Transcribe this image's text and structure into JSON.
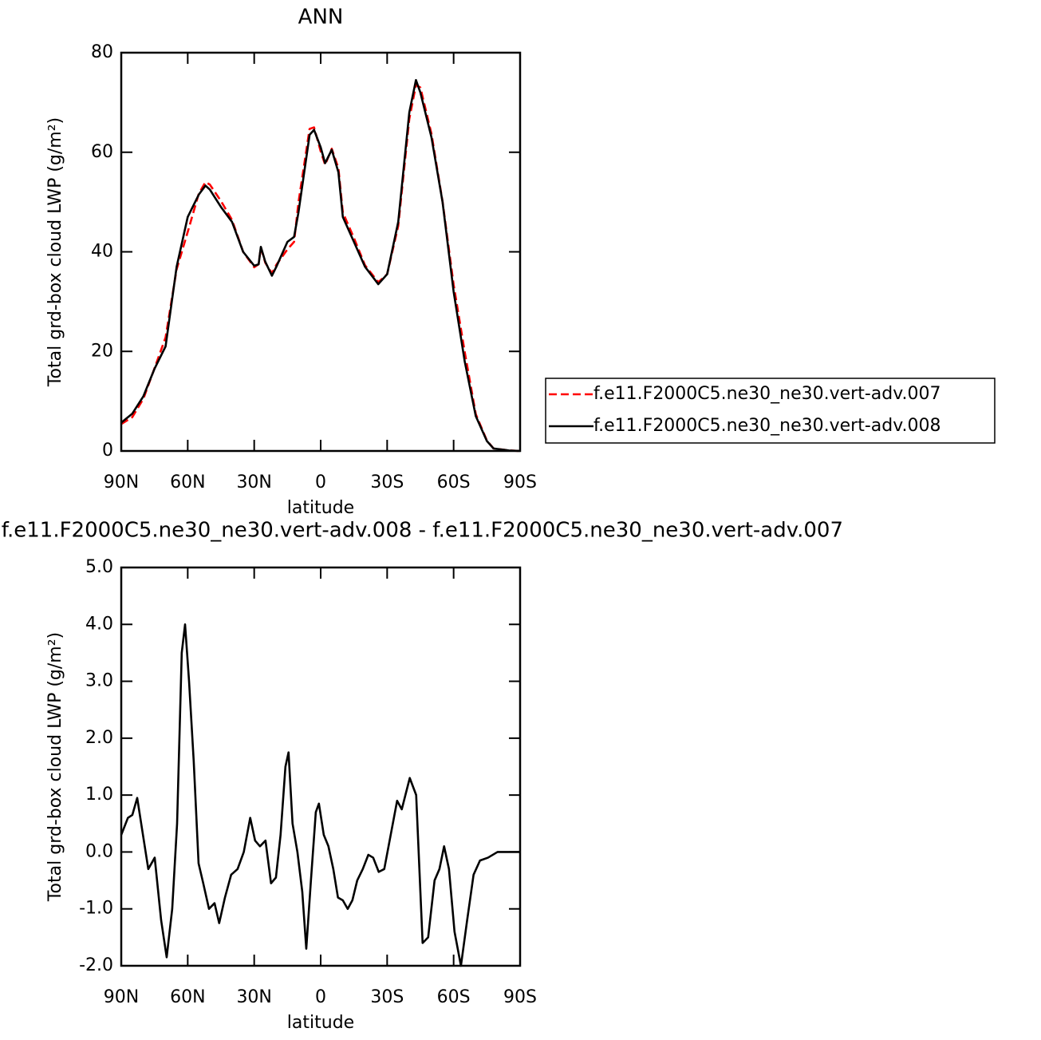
{
  "chart_data": [
    {
      "type": "line",
      "title": "ANN",
      "xlabel": "latitude",
      "ylabel": "Total grd-box cloud LWP (g/m²)",
      "xlim": [
        90,
        -90
      ],
      "xticks": [
        {
          "value": 90,
          "label": "90N"
        },
        {
          "value": 60,
          "label": "60N"
        },
        {
          "value": 30,
          "label": "30N"
        },
        0,
        {
          "value": -30,
          "label": "30S"
        },
        {
          "value": -60,
          "label": "60S"
        },
        {
          "value": -90,
          "label": "90S"
        }
      ],
      "ylim": [
        0,
        80
      ],
      "yticks": [
        0,
        20,
        40,
        60,
        80
      ],
      "legend": "right",
      "x": [
        90,
        85,
        80,
        75,
        70,
        65,
        60,
        55,
        52,
        50,
        45,
        40,
        35,
        30,
        28,
        27,
        25,
        22,
        20,
        15,
        12,
        10,
        5,
        3,
        0,
        -2,
        -5,
        -8,
        -10,
        -15,
        -20,
        -26,
        -30,
        -35,
        -40,
        -43,
        -45,
        -50,
        -55,
        -60,
        -65,
        -70,
        -75,
        -78,
        -85,
        -90
      ],
      "series": [
        {
          "name": "f.e11.F2000C5.ne30_ne30.vert-adv.007",
          "color": "#ff0000",
          "linestyle": "dashed",
          "values": [
            5.4,
            6.8,
            10.5,
            16.6,
            22.8,
            36.5,
            44,
            51.7,
            54,
            53.5,
            50.2,
            46.4,
            40,
            36.9,
            37.5,
            40.9,
            37.8,
            35.7,
            37.4,
            40.5,
            42,
            50,
            64.7,
            65,
            60.2,
            57.5,
            60.7,
            56.8,
            47.9,
            42.8,
            37.3,
            33.9,
            35.5,
            45.2,
            66.7,
            73.5,
            73,
            63.7,
            50.1,
            33.4,
            19.9,
            7.4,
            2.1,
            0.5,
            0.1,
            0
          ]
        },
        {
          "name": "f.e11.F2000C5.ne30_ne30.vert-adv.008",
          "color": "#000000",
          "linestyle": "solid",
          "values": [
            5.7,
            7.5,
            11,
            16.5,
            21,
            37,
            47,
            51.5,
            53.3,
            52.5,
            49,
            46,
            40,
            37.2,
            37.5,
            41,
            38,
            35.2,
            37,
            42,
            43,
            48,
            63.5,
            64.5,
            61,
            57.8,
            60.5,
            56,
            47,
            42,
            37,
            33.5,
            35.5,
            46,
            68,
            74.5,
            72,
            63,
            50,
            32,
            18,
            7,
            2,
            0.5,
            0.1,
            0
          ]
        }
      ]
    },
    {
      "type": "line",
      "title": "f.e11.F2000C5.ne30_ne30.vert-adv.008 - f.e11.F2000C5.ne30_ne30.vert-adv.007",
      "xlabel": "latitude",
      "ylabel": "Total grd-box cloud LWP (g/m²)",
      "xlim": [
        90,
        -90
      ],
      "xticks": [
        {
          "value": 90,
          "label": "90N"
        },
        {
          "value": 60,
          "label": "60N"
        },
        {
          "value": 30,
          "label": "30N"
        },
        0,
        {
          "value": -30,
          "label": "30S"
        },
        {
          "value": -60,
          "label": "60S"
        },
        {
          "value": -90,
          "label": "90S"
        }
      ],
      "ylim": [
        -2,
        5
      ],
      "yticks": [
        {
          "value": -2,
          "label": "-2.0"
        },
        {
          "value": -1,
          "label": "-1.0"
        },
        {
          "value": 0,
          "label": "0.0"
        },
        {
          "value": 1,
          "label": "1.0"
        },
        {
          "value": 2,
          "label": "2.0"
        },
        {
          "value": 3,
          "label": "3.0"
        },
        {
          "value": 4,
          "label": "4.0"
        },
        {
          "value": 5,
          "label": "5.0"
        }
      ],
      "x": [
        90,
        87,
        85,
        82.8,
        80.6,
        77.8,
        74.9,
        72,
        69.5,
        67,
        64.8,
        62.7,
        61.2,
        59.4,
        57.3,
        55.1,
        53,
        50.4,
        47.9,
        45.8,
        43.2,
        40.4,
        37.5,
        34.7,
        31.8,
        29.6,
        27.4,
        24.9,
        22.4,
        20.2,
        18.1,
        15.9,
        14.5,
        12.7,
        10.5,
        8.3,
        6.5,
        4.4,
        2.2,
        0.8,
        -1.4,
        -3.5,
        -5.7,
        -7.8,
        -10,
        -12.2,
        -14.3,
        -16.5,
        -19,
        -21.5,
        -23.7,
        -26.2,
        -28.7,
        -31.6,
        -34.5,
        -36.6,
        -40.2,
        -43.1,
        -46,
        -48.5,
        -51.4,
        -53.6,
        -55.7,
        -57.9,
        -60.4,
        -63.3,
        -66.1,
        -69,
        -71.9,
        -75.5,
        -79.8,
        -85.6,
        -90
      ],
      "series": [
        {
          "color": "#000000",
          "linestyle": "solid",
          "values": [
            0.3,
            0.6,
            0.65,
            0.95,
            0.4,
            -0.3,
            -0.1,
            -1.2,
            -1.85,
            -1.0,
            0.5,
            3.5,
            4.0,
            3.0,
            1.6,
            -0.2,
            -0.55,
            -1.0,
            -0.9,
            -1.25,
            -0.8,
            -0.4,
            -0.3,
            0.0,
            0.6,
            0.2,
            0.1,
            0.2,
            -0.55,
            -0.45,
            0.3,
            1.5,
            1.75,
            0.5,
            0.0,
            -0.7,
            -1.7,
            -0.5,
            0.7,
            0.85,
            0.3,
            0.1,
            -0.3,
            -0.8,
            -0.85,
            -1.0,
            -0.85,
            -0.5,
            -0.3,
            -0.05,
            -0.1,
            -0.35,
            -0.3,
            0.3,
            0.9,
            0.75,
            1.3,
            1.0,
            -1.6,
            -1.5,
            -0.5,
            -0.3,
            0.1,
            -0.3,
            -1.4,
            -2.0,
            -1.2,
            -0.4,
            -0.15,
            -0.1,
            0.0,
            0.0,
            0.0
          ]
        }
      ]
    }
  ]
}
